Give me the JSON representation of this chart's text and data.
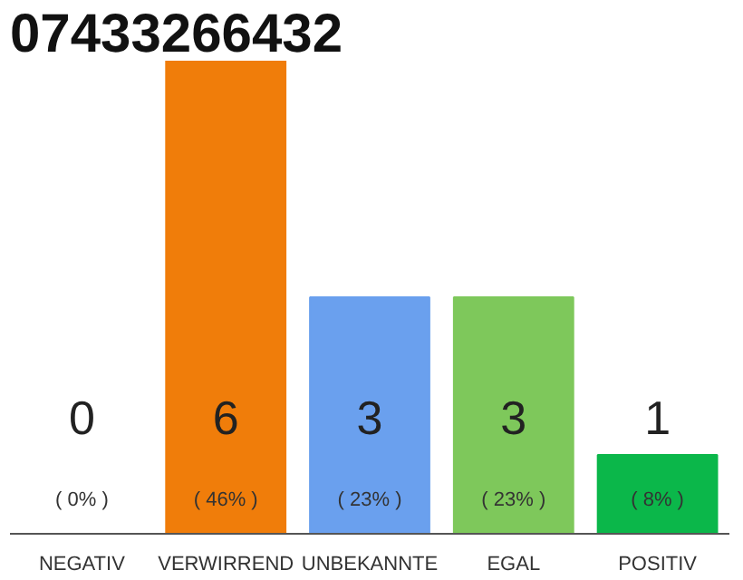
{
  "chart_data": {
    "type": "bar",
    "title": "07433266432",
    "categories": [
      "NEGATIV",
      "VERWIRREND",
      "UNBEKANNTE",
      "EGAL",
      "POSITIV"
    ],
    "values": [
      0,
      6,
      3,
      3,
      1
    ],
    "colors": [
      "#e6e6e6",
      "#f07d0a",
      "#6aa0ee",
      "#7ec85b",
      "#0bb74a"
    ],
    "ylim": [
      0,
      6
    ],
    "data_labels": true,
    "grid": false,
    "annotations": [
      {
        "text": "( 0% )",
        "x": "NEGATIV",
        "y": 0
      },
      {
        "text": "( 46% )",
        "x": "VERWIRREND",
        "y": 0
      },
      {
        "text": "( 23% )",
        "x": "UNBEKANNTE",
        "y": 0
      },
      {
        "text": "( 23% )",
        "x": "EGAL",
        "y": 0
      },
      {
        "text": "( 8% )",
        "x": "POSITIV",
        "y": 0
      }
    ]
  }
}
